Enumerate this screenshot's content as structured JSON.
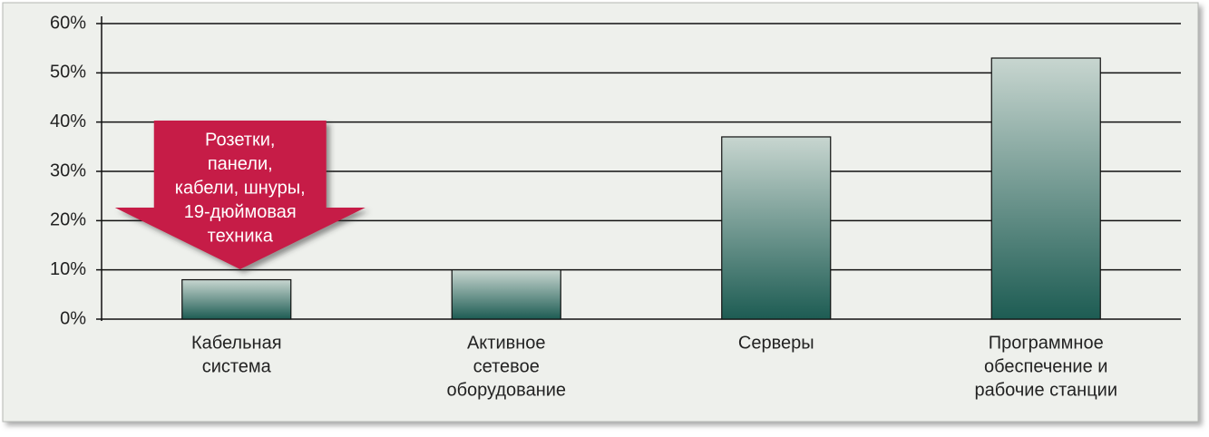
{
  "chart_data": {
    "type": "bar",
    "categories": [
      [
        "Кабельная",
        "система"
      ],
      [
        "Активное",
        "сетевое",
        "оборудование"
      ],
      [
        "Серверы"
      ],
      [
        "Программное",
        "обеспечение и",
        "рабочие станции"
      ]
    ],
    "values": [
      8,
      10,
      37,
      53
    ],
    "color": [
      "#c8d6d0",
      "#1d5c53"
    ],
    "ylim": [
      0,
      60
    ],
    "yticks": [
      {
        "value": 0,
        "label": "0%"
      },
      {
        "value": 10,
        "label": "10%"
      },
      {
        "value": 20,
        "label": "20%"
      },
      {
        "value": 30,
        "label": "30%"
      },
      {
        "value": 40,
        "label": "40%"
      },
      {
        "value": 50,
        "label": "50%"
      },
      {
        "value": 60,
        "label": "60%"
      }
    ],
    "grid": true,
    "annotation": {
      "lines": [
        "Розетки,",
        "панели,",
        "кабели, шнуры,",
        "19-дюймовая",
        "техника"
      ],
      "color": "#c61f46"
    }
  }
}
